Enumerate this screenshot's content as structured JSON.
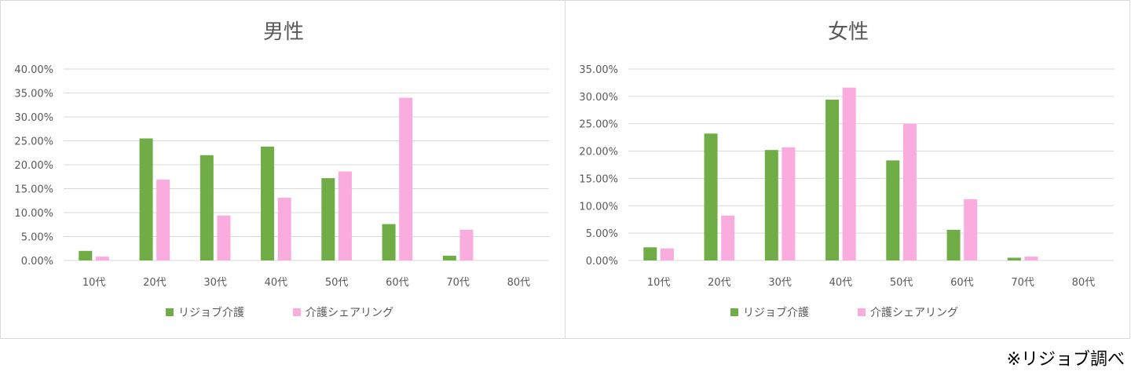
{
  "colors": {
    "series1": "#70ad47",
    "series2": "#fbacdf",
    "grid": "#d9d9d9",
    "text": "#595959"
  },
  "chart_data": [
    {
      "type": "bar",
      "title": "男性",
      "categories": [
        "10代",
        "20代",
        "30代",
        "40代",
        "50代",
        "60代",
        "70代",
        "80代"
      ],
      "ylim": [
        0,
        0.4
      ],
      "ytick_labels": [
        "0.00%",
        "5.00%",
        "10.00%",
        "15.00%",
        "20.00%",
        "25.00%",
        "30.00%",
        "35.00%",
        "40.00%"
      ],
      "grid": true,
      "legend": "bottom",
      "series": [
        {
          "name": "リジョブ介護",
          "values": [
            0.02,
            0.255,
            0.22,
            0.238,
            0.172,
            0.076,
            0.01,
            0.0
          ]
        },
        {
          "name": "介護シェアリング",
          "values": [
            0.008,
            0.169,
            0.094,
            0.131,
            0.186,
            0.34,
            0.064,
            0.0
          ]
        }
      ]
    },
    {
      "type": "bar",
      "title": "女性",
      "categories": [
        "10代",
        "20代",
        "30代",
        "40代",
        "50代",
        "60代",
        "70代",
        "80代"
      ],
      "ylim": [
        0,
        0.35
      ],
      "ytick_labels": [
        "0.00%",
        "5.00%",
        "10.00%",
        "15.00%",
        "20.00%",
        "25.00%",
        "30.00%",
        "35.00%"
      ],
      "grid": true,
      "legend": "bottom",
      "series": [
        {
          "name": "リジョブ介護",
          "values": [
            0.024,
            0.232,
            0.202,
            0.294,
            0.183,
            0.056,
            0.005,
            0.0
          ]
        },
        {
          "name": "介護シェアリング",
          "values": [
            0.022,
            0.082,
            0.207,
            0.316,
            0.25,
            0.112,
            0.007,
            0.0
          ]
        }
      ]
    }
  ],
  "source_note": "※リジョブ調べ"
}
